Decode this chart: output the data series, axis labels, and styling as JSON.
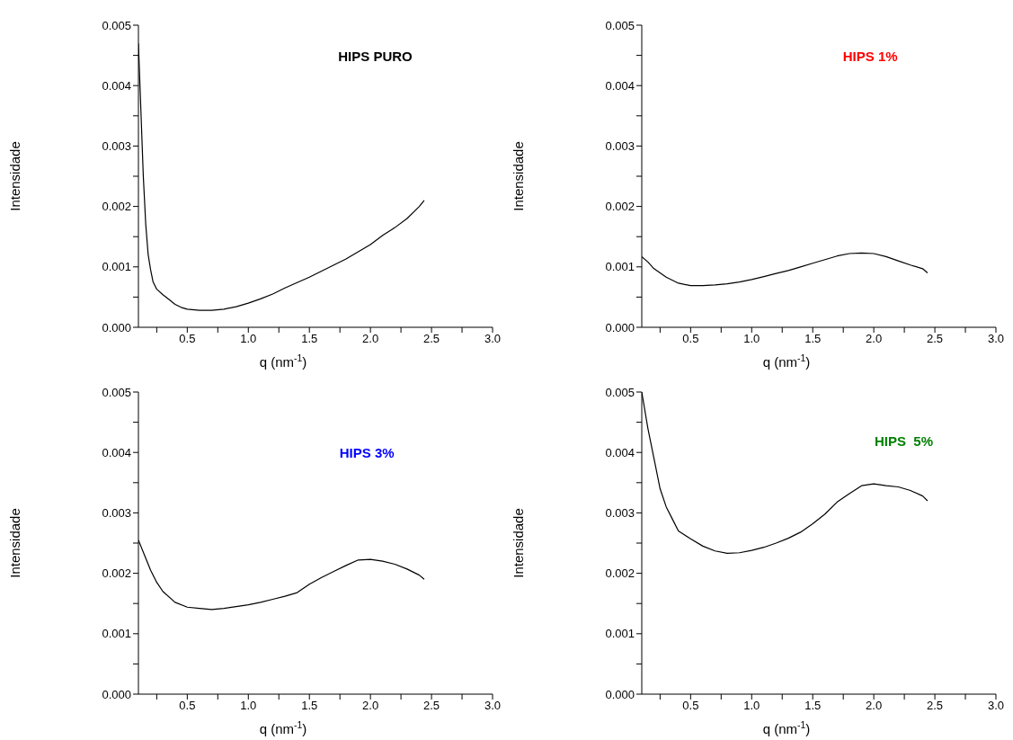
{
  "chart_data": [
    {
      "type": "line",
      "title": "HIPS PURO",
      "xlabel": "q (nm$^{-1}$)",
      "ylabel": "Intensidade",
      "marker": "none",
      "line_style": "solid",
      "xlim": [
        0.1,
        3.0
      ],
      "ylim": [
        0,
        0.005
      ],
      "xticks": [
        {
          "value": 0.25,
          "label": null
        },
        0.5,
        {
          "value": 0.75,
          "label": null
        },
        {
          "value": 1,
          "label": "1.0"
        },
        {
          "value": 1.25,
          "label": null
        },
        1.5,
        {
          "value": 1.75,
          "label": null
        },
        {
          "value": 2,
          "label": "2.0"
        },
        {
          "value": 2.25,
          "label": null
        },
        2.5,
        {
          "value": 2.75,
          "label": null
        },
        {
          "value": 3,
          "label": "3.0"
        }
      ],
      "yticks": [
        {
          "value": 0,
          "label": "0.000"
        },
        {
          "value": 0.0005,
          "label": null
        },
        0.001,
        {
          "value": 0.0015,
          "label": null
        },
        0.002,
        {
          "value": 0.0025,
          "label": null
        },
        0.003,
        {
          "value": 0.0035,
          "label": null
        },
        0.004,
        {
          "value": 0.0045,
          "label": null
        },
        0.005
      ],
      "x": [
        0.1,
        0.12,
        0.14,
        0.16,
        0.18,
        0.2,
        0.22,
        0.25,
        0.3,
        0.35,
        0.4,
        0.45,
        0.5,
        0.6,
        0.7,
        0.8,
        0.9,
        1.0,
        1.1,
        1.2,
        1.3,
        1.4,
        1.5,
        1.6,
        1.7,
        1.8,
        1.9,
        2.0,
        2.1,
        2.2,
        2.3,
        2.4,
        2.44
      ],
      "series": [
        {
          "color": "#000000",
          "values": [
            0.0047,
            0.0036,
            0.0025,
            0.0017,
            0.0012,
            0.00095,
            0.00075,
            0.00063,
            0.00054,
            0.00046,
            0.00038,
            0.00033,
            0.0003,
            0.00028,
            0.00028,
            0.0003,
            0.00034,
            0.0004,
            0.00047,
            0.00055,
            0.00065,
            0.00074,
            0.00083,
            0.00093,
            0.00103,
            0.00113,
            0.00125,
            0.00137,
            0.00152,
            0.00165,
            0.0018,
            0.002,
            0.0021
          ]
        }
      ]
    },
    {
      "type": "line",
      "title": "HIPS 1%",
      "xlabel": "q (nm$^{-1}$)",
      "ylabel": "Intensidade",
      "marker": "none",
      "line_style": "solid",
      "xlim": [
        0.1,
        3.0
      ],
      "ylim": [
        0,
        0.005
      ],
      "xticks": [
        {
          "value": 0.25,
          "label": null
        },
        0.5,
        {
          "value": 0.75,
          "label": null
        },
        {
          "value": 1,
          "label": "1.0"
        },
        {
          "value": 1.25,
          "label": null
        },
        1.5,
        {
          "value": 1.75,
          "label": null
        },
        {
          "value": 2,
          "label": "2.0"
        },
        {
          "value": 2.25,
          "label": null
        },
        2.5,
        {
          "value": 2.75,
          "label": null
        },
        {
          "value": 3,
          "label": "3.0"
        }
      ],
      "yticks": [
        {
          "value": 0,
          "label": "0.000"
        },
        {
          "value": 0.0005,
          "label": null
        },
        0.001,
        {
          "value": 0.0015,
          "label": null
        },
        0.002,
        {
          "value": 0.0025,
          "label": null
        },
        0.003,
        {
          "value": 0.0035,
          "label": null
        },
        0.004,
        {
          "value": 0.0045,
          "label": null
        },
        0.005
      ],
      "x": [
        0.1,
        0.15,
        0.2,
        0.3,
        0.4,
        0.5,
        0.6,
        0.7,
        0.8,
        0.9,
        1.0,
        1.1,
        1.2,
        1.3,
        1.4,
        1.5,
        1.6,
        1.7,
        1.8,
        1.9,
        2.0,
        2.1,
        2.2,
        2.3,
        2.4,
        2.44
      ],
      "series": [
        {
          "color": "#000000",
          "values": [
            0.00117,
            0.00108,
            0.00097,
            0.00083,
            0.00073,
            0.00069,
            0.00069,
            0.0007,
            0.00072,
            0.00075,
            0.00079,
            0.00084,
            0.00089,
            0.00094,
            0.001,
            0.00106,
            0.00112,
            0.00118,
            0.00122,
            0.00123,
            0.00122,
            0.00117,
            0.0011,
            0.00103,
            0.00097,
            0.0009
          ]
        }
      ]
    },
    {
      "type": "line",
      "title": "HIPS 3%",
      "xlabel": "q (nm$^{-1}$)",
      "ylabel": "Intensidade",
      "marker": "none",
      "line_style": "solid",
      "xlim": [
        0.1,
        3.0
      ],
      "ylim": [
        0,
        0.005
      ],
      "xticks": [
        {
          "value": 0.25,
          "label": null
        },
        0.5,
        {
          "value": 0.75,
          "label": null
        },
        {
          "value": 1,
          "label": "1.0"
        },
        {
          "value": 1.25,
          "label": null
        },
        1.5,
        {
          "value": 1.75,
          "label": null
        },
        {
          "value": 2,
          "label": "2.0"
        },
        {
          "value": 2.25,
          "label": null
        },
        2.5,
        {
          "value": 2.75,
          "label": null
        },
        {
          "value": 3,
          "label": "3.0"
        }
      ],
      "yticks": [
        {
          "value": 0,
          "label": "0.000"
        },
        {
          "value": 0.0005,
          "label": null
        },
        0.001,
        {
          "value": 0.0015,
          "label": null
        },
        0.002,
        {
          "value": 0.0025,
          "label": null
        },
        0.003,
        {
          "value": 0.0035,
          "label": null
        },
        0.004,
        {
          "value": 0.0045,
          "label": null
        },
        0.005
      ],
      "x": [
        0.1,
        0.15,
        0.2,
        0.25,
        0.3,
        0.4,
        0.5,
        0.6,
        0.7,
        0.8,
        0.9,
        1.0,
        1.1,
        1.2,
        1.3,
        1.4,
        1.5,
        1.6,
        1.7,
        1.8,
        1.9,
        2.0,
        2.1,
        2.2,
        2.3,
        2.4,
        2.44
      ],
      "series": [
        {
          "color": "#000000",
          "values": [
            0.00255,
            0.0023,
            0.00205,
            0.00185,
            0.0017,
            0.00152,
            0.00144,
            0.00142,
            0.0014,
            0.00142,
            0.00145,
            0.00148,
            0.00152,
            0.00157,
            0.00162,
            0.00168,
            0.00182,
            0.00193,
            0.00203,
            0.00213,
            0.00222,
            0.00223,
            0.0022,
            0.00215,
            0.00207,
            0.00197,
            0.0019
          ]
        }
      ]
    },
    {
      "type": "line",
      "title": "HIPS  5%",
      "xlabel": "q (nm$^{-1}$)",
      "ylabel": "Intensidade",
      "marker": "none",
      "line_style": "solid",
      "xlim": [
        0.1,
        3.0
      ],
      "ylim": [
        0,
        0.005
      ],
      "xticks": [
        {
          "value": 0.25,
          "label": null
        },
        0.5,
        {
          "value": 0.75,
          "label": null
        },
        {
          "value": 1,
          "label": "1.0"
        },
        {
          "value": 1.25,
          "label": null
        },
        1.5,
        {
          "value": 1.75,
          "label": null
        },
        {
          "value": 2,
          "label": "2.0"
        },
        {
          "value": 2.25,
          "label": null
        },
        2.5,
        {
          "value": 2.75,
          "label": null
        },
        {
          "value": 3,
          "label": "3.0"
        }
      ],
      "yticks": [
        {
          "value": 0,
          "label": "0.000"
        },
        {
          "value": 0.0005,
          "label": null
        },
        0.001,
        {
          "value": 0.0015,
          "label": null
        },
        0.002,
        {
          "value": 0.0025,
          "label": null
        },
        0.003,
        {
          "value": 0.0035,
          "label": null
        },
        0.004,
        {
          "value": 0.0045,
          "label": null
        },
        0.005
      ],
      "x": [
        0.1,
        0.15,
        0.2,
        0.25,
        0.3,
        0.35,
        0.4,
        0.5,
        0.6,
        0.7,
        0.8,
        0.9,
        1.0,
        1.1,
        1.2,
        1.3,
        1.4,
        1.5,
        1.6,
        1.7,
        1.8,
        1.9,
        2.0,
        2.1,
        2.2,
        2.3,
        2.4,
        2.44
      ],
      "series": [
        {
          "color": "#000000",
          "values": [
            0.005,
            0.0044,
            0.0039,
            0.0034,
            0.0031,
            0.0029,
            0.0027,
            0.00257,
            0.00245,
            0.00237,
            0.00233,
            0.00234,
            0.00238,
            0.00243,
            0.0025,
            0.00258,
            0.00268,
            0.00282,
            0.00298,
            0.00318,
            0.00332,
            0.00345,
            0.00348,
            0.00345,
            0.00343,
            0.00337,
            0.00328,
            0.0032
          ]
        }
      ]
    }
  ]
}
